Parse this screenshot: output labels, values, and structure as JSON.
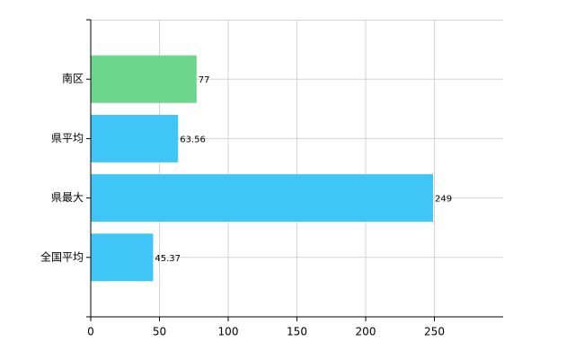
{
  "chart_data": {
    "type": "barh",
    "categories": [
      "南区",
      "県平均",
      "県最大",
      "全国平均"
    ],
    "values": [
      77,
      63.56,
      249,
      45.37
    ],
    "colors": [
      "#6cd68c",
      "#3fc6f6",
      "#3fc6f6",
      "#3fc6f6"
    ],
    "xlim": [
      0,
      300
    ],
    "xticks": [
      0,
      50,
      100,
      150,
      200,
      250
    ],
    "grid": true
  }
}
